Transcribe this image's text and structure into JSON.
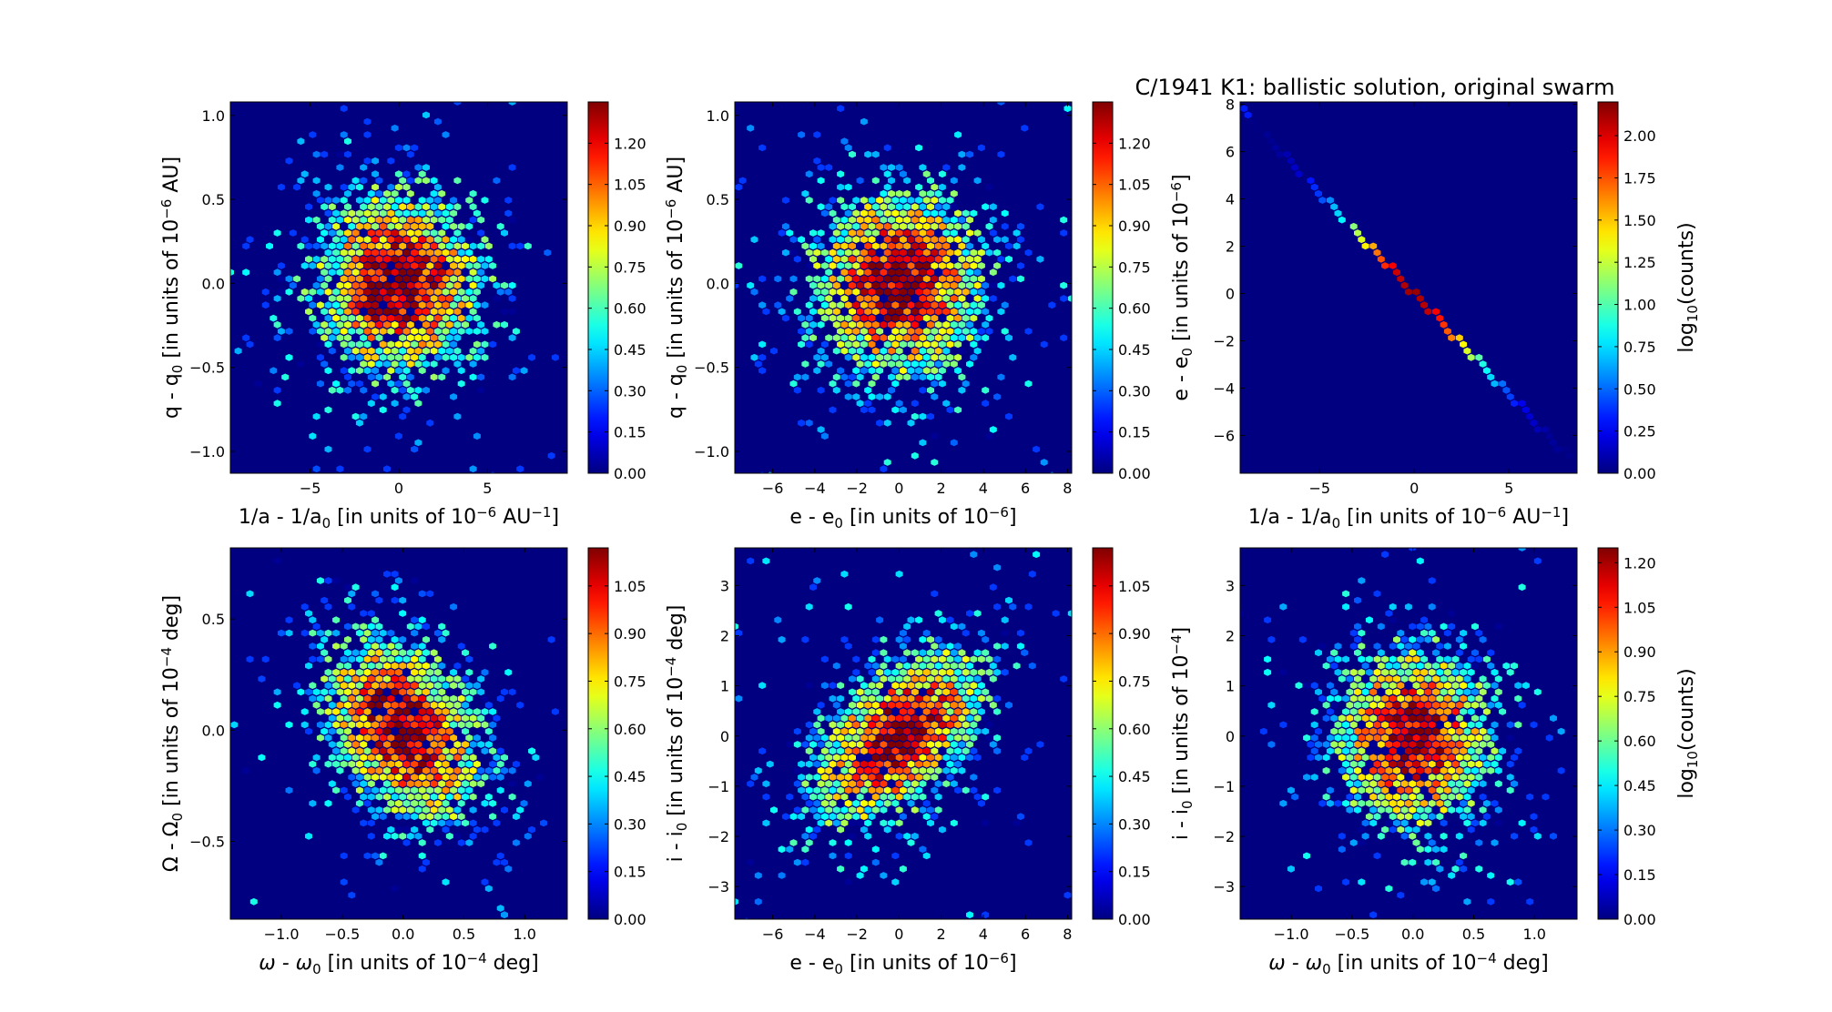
{
  "figure": {
    "title": "C/1941 K1:  ballistic solution, original swarm",
    "colorbar_label": "log10(counts)"
  },
  "chart_data": [
    {
      "type": "heatmap",
      "panel": 1,
      "xlabel": "1/a - 1/a0 [in units of 10^-6 AU^-1]",
      "ylabel": "q - q0 [in units of 10^-6 AU]",
      "xlim": [
        -9.5,
        9.5
      ],
      "ylim": [
        -1.13,
        1.08
      ],
      "xticks": [
        -5,
        0,
        5
      ],
      "xtick_labels": [
        "−5",
        "0",
        "5"
      ],
      "yticks": [
        -1.0,
        -0.5,
        0.0,
        0.5,
        1.0
      ],
      "ytick_labels": [
        "−1.0",
        "−0.5",
        "0.0",
        "0.5",
        "1.0"
      ],
      "colorbar": {
        "max": 1.35,
        "ticks": [
          "0.00",
          "0.15",
          "0.30",
          "0.45",
          "0.60",
          "0.75",
          "0.90",
          "1.05",
          "1.20"
        ]
      },
      "distribution": {
        "x_mean": 0.0,
        "x_sd": 2.8,
        "y_mean": 0.0,
        "y_sd": 0.33,
        "correlation": 0.0
      }
    },
    {
      "type": "heatmap",
      "panel": 2,
      "xlabel": "e - e0 [in units of 10^-6]",
      "ylabel": "q - q0 [in units of 10^-6 AU]",
      "xlim": [
        -7.8,
        8.2
      ],
      "ylim": [
        -1.13,
        1.08
      ],
      "xticks": [
        -6,
        -4,
        -2,
        0,
        2,
        4,
        6,
        8
      ],
      "xtick_labels": [
        "−6",
        "−4",
        "−2",
        "0",
        "2",
        "4",
        "6",
        "8"
      ],
      "yticks": [
        -1.0,
        -0.5,
        0.0,
        0.5,
        1.0
      ],
      "ytick_labels": [
        "−1.0",
        "−0.5",
        "0.0",
        "0.5",
        "1.0"
      ],
      "colorbar": {
        "max": 1.35,
        "ticks": [
          "0.00",
          "0.15",
          "0.30",
          "0.45",
          "0.60",
          "0.75",
          "0.90",
          "1.05",
          "1.20"
        ]
      },
      "distribution": {
        "x_mean": 0.0,
        "x_sd": 2.4,
        "y_mean": 0.0,
        "y_sd": 0.33,
        "correlation": 0.0
      }
    },
    {
      "type": "heatmap",
      "panel": 3,
      "xlabel": "1/a - 1/a0 [in units of 10^-6 AU^-1]",
      "ylabel": "e - e0 [in units of 10^-6]",
      "xlim": [
        -9.2,
        8.6
      ],
      "ylim": [
        -7.6,
        8.1
      ],
      "xticks": [
        -5,
        0,
        5
      ],
      "xtick_labels": [
        "−5",
        "0",
        "5"
      ],
      "yticks": [
        -6,
        -4,
        -2,
        0,
        2,
        4,
        6,
        8
      ],
      "ytick_labels": [
        "−6",
        "−4",
        "−2",
        "0",
        "2",
        "4",
        "6",
        "8"
      ],
      "colorbar": {
        "max": 2.2,
        "ticks": [
          "0.00",
          "0.25",
          "0.50",
          "0.75",
          "1.00",
          "1.25",
          "1.50",
          "1.75",
          "2.00"
        ]
      },
      "distribution": {
        "relation": "e - e0 = -0.85 * (1/a - 1/a0)",
        "x_sd": 2.8
      }
    },
    {
      "type": "heatmap",
      "panel": 4,
      "xlabel": "ω - ω0 [in units of 10^-4 deg]",
      "ylabel": "Ω - Ω0 [in units of 10^-4 deg]",
      "xlim": [
        -1.42,
        1.35
      ],
      "ylim": [
        -0.85,
        0.82
      ],
      "xticks": [
        -1.0,
        -0.5,
        0.0,
        0.5,
        1.0
      ],
      "xtick_labels": [
        "−1.0",
        "−0.5",
        "0.0",
        "0.5",
        "1.0"
      ],
      "yticks": [
        -0.5,
        0.0,
        0.5
      ],
      "ytick_labels": [
        "−0.5",
        "0.0",
        "0.5"
      ],
      "colorbar": {
        "max": 1.17,
        "ticks": [
          "0.00",
          "0.15",
          "0.30",
          "0.45",
          "0.60",
          "0.75",
          "0.90",
          "1.05"
        ]
      },
      "distribution": {
        "x_mean": 0.0,
        "x_sd": 0.38,
        "y_mean": 0.0,
        "y_sd": 0.25,
        "correlation": -0.35
      }
    },
    {
      "type": "heatmap",
      "panel": 5,
      "xlabel": "e - e0 [in units of 10^-6]",
      "ylabel": "i - i0 [in units of 10^-4 deg]",
      "xlim": [
        -7.8,
        8.2
      ],
      "ylim": [
        -3.65,
        3.75
      ],
      "xticks": [
        -6,
        -4,
        -2,
        0,
        2,
        4,
        6,
        8
      ],
      "xtick_labels": [
        "−6",
        "−4",
        "−2",
        "0",
        "2",
        "4",
        "6",
        "8"
      ],
      "yticks": [
        -3,
        -2,
        -1,
        0,
        1,
        2,
        3
      ],
      "ytick_labels": [
        "−3",
        "−2",
        "−1",
        "0",
        "1",
        "2",
        "3"
      ],
      "colorbar": {
        "max": 1.17,
        "ticks": [
          "0.00",
          "0.15",
          "0.30",
          "0.45",
          "0.60",
          "0.75",
          "0.90",
          "1.05"
        ]
      },
      "distribution": {
        "x_mean": 0.0,
        "x_sd": 2.4,
        "y_mean": 0.0,
        "y_sd": 1.05,
        "correlation": 0.5
      }
    },
    {
      "type": "heatmap",
      "panel": 6,
      "xlabel": "ω - ω0 [in units of 10^-4 deg]",
      "ylabel": "i - i0 [in units of 10^-4]",
      "xlim": [
        -1.42,
        1.35
      ],
      "ylim": [
        -3.65,
        3.75
      ],
      "xticks": [
        -1.0,
        -0.5,
        0.0,
        0.5,
        1.0
      ],
      "xtick_labels": [
        "−1.0",
        "−0.5",
        "0.0",
        "0.5",
        "1.0"
      ],
      "yticks": [
        -3,
        -2,
        -1,
        0,
        1,
        2,
        3
      ],
      "ytick_labels": [
        "−3",
        "−2",
        "−1",
        "0",
        "1",
        "2",
        "3"
      ],
      "colorbar": {
        "max": 1.25,
        "ticks": [
          "0.00",
          "0.15",
          "0.30",
          "0.45",
          "0.60",
          "0.75",
          "0.90",
          "1.05",
          "1.20"
        ]
      },
      "distribution": {
        "x_mean": 0.0,
        "x_sd": 0.38,
        "y_mean": 0.0,
        "y_sd": 1.05,
        "correlation": 0.0
      }
    }
  ]
}
